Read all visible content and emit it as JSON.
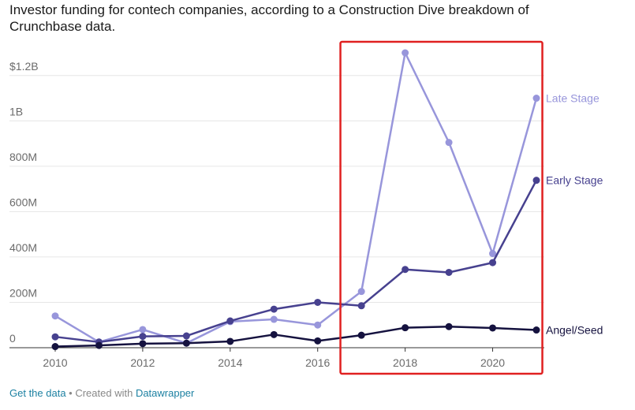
{
  "subtitle": "Investor funding for contech companies, according to a Construction Dive breakdown of Crunchbase data.",
  "footer": {
    "get_data": "Get the data",
    "separator": " • Created with ",
    "tool": "Datawrapper"
  },
  "chart_data": {
    "type": "line",
    "title": "Investor funding for contech companies, according to a Construction Dive breakdown of Crunchbase data.",
    "x": [
      2010,
      2011,
      2012,
      2013,
      2014,
      2015,
      2016,
      2017,
      2018,
      2019,
      2020,
      2021
    ],
    "x_ticks": [
      2010,
      2012,
      2014,
      2016,
      2018,
      2020
    ],
    "y_ticks": [
      0,
      200,
      400,
      600,
      800,
      1000,
      1200
    ],
    "y_tick_labels": [
      "0",
      "200M",
      "400M",
      "600M",
      "800M",
      "1B",
      "$1.2B"
    ],
    "ylim": [
      0,
      1300
    ],
    "unit": "millions USD",
    "series": [
      {
        "name": "Late Stage",
        "color": "#9896db",
        "values": [
          140,
          25,
          80,
          20,
          115,
          125,
          100,
          248,
          1300,
          905,
          415,
          1100
        ]
      },
      {
        "name": "Early Stage",
        "color": "#47418f",
        "values": [
          48,
          25,
          50,
          52,
          118,
          170,
          200,
          185,
          345,
          332,
          375,
          738
        ]
      },
      {
        "name": "Angel/Seed",
        "color": "#15123f",
        "values": [
          5,
          10,
          18,
          20,
          28,
          58,
          30,
          55,
          88,
          93,
          87,
          78
        ]
      }
    ],
    "highlight": {
      "x_range": [
        2016.7,
        2021.1
      ],
      "color": "#e02020"
    }
  }
}
